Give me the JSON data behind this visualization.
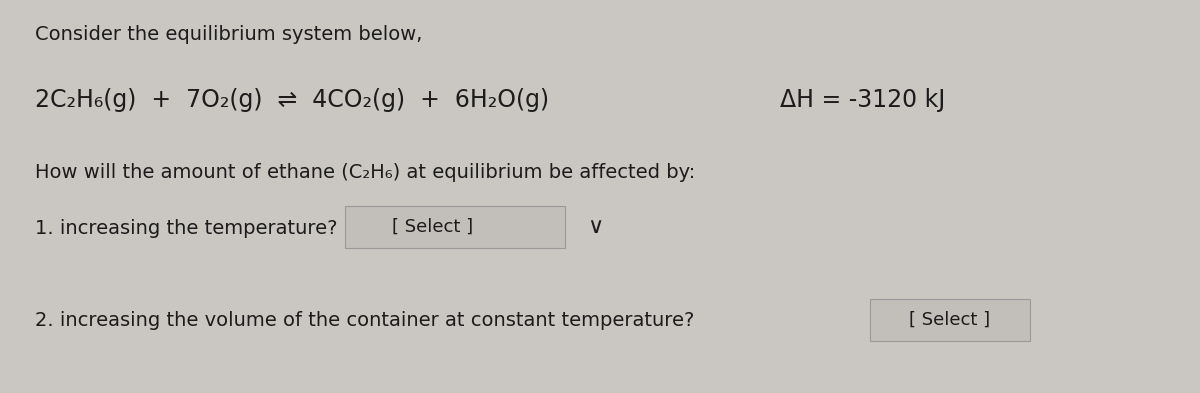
{
  "background_color": "#cac6c2",
  "title_line": "Consider the equilibrium system below,",
  "eq_part1": "2C₂H₆(g)  +  7O₂(g)  ⇌  4CO₂(g)  +  6H₂O(g)",
  "eq_part2": "ΔH = -3120 kJ",
  "question_line": "How will the amount of ethane (C₂H₆) at equilibrium be affected by:",
  "item1_text": "1. increasing the temperature?",
  "item2_text": "2. increasing the volume of the container at constant temperature?",
  "select_label": "[ Select ]",
  "title_fontsize": 14,
  "eq_fontsize": 17,
  "question_fontsize": 14,
  "item_fontsize": 14,
  "select_fontsize": 13,
  "text_color": "#1c1c1c",
  "box_facecolor": "#c2beba",
  "box_edgecolor": "#999999",
  "arrow_color": "#2a2a2a"
}
